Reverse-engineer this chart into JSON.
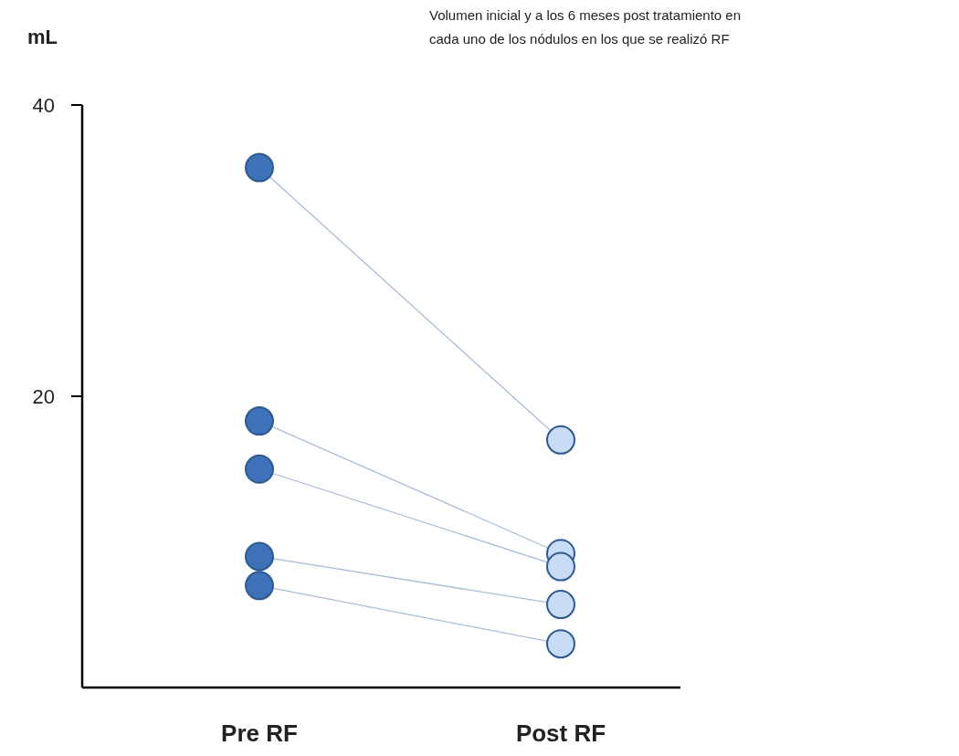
{
  "chart_data": {
    "type": "line",
    "title": "Volumen inicial y a los 6 meses post tratamiento en cada uno de los nódulos en los que se realizó RF",
    "ylabel": "mL",
    "categories": [
      "Pre RF",
      "Post RF"
    ],
    "ylim": [
      0,
      40
    ],
    "yticks": [
      20,
      40
    ],
    "grid": false,
    "marker": "circle",
    "line_style": "solid",
    "series": [
      {
        "color": "#a9bcd6",
        "colors": [
          "#3d72b8",
          "#c8ddf5"
        ],
        "values": [
          35.7,
          17.0
        ]
      },
      {
        "color": "#a9bcd6",
        "colors": [
          "#3d72b8",
          "#c8ddf5"
        ],
        "values": [
          18.3,
          9.2
        ]
      },
      {
        "color": "#a9bcd6",
        "colors": [
          "#3d72b8",
          "#c8ddf5"
        ],
        "values": [
          15.0,
          8.3
        ]
      },
      {
        "color": "#a9bcd6",
        "colors": [
          "#3d72b8",
          "#c8ddf5"
        ],
        "values": [
          9.0,
          5.7
        ]
      },
      {
        "color": "#a9bcd6",
        "colors": [
          "#3d72b8",
          "#c8ddf5"
        ],
        "values": [
          7.0,
          3.0
        ]
      }
    ]
  }
}
